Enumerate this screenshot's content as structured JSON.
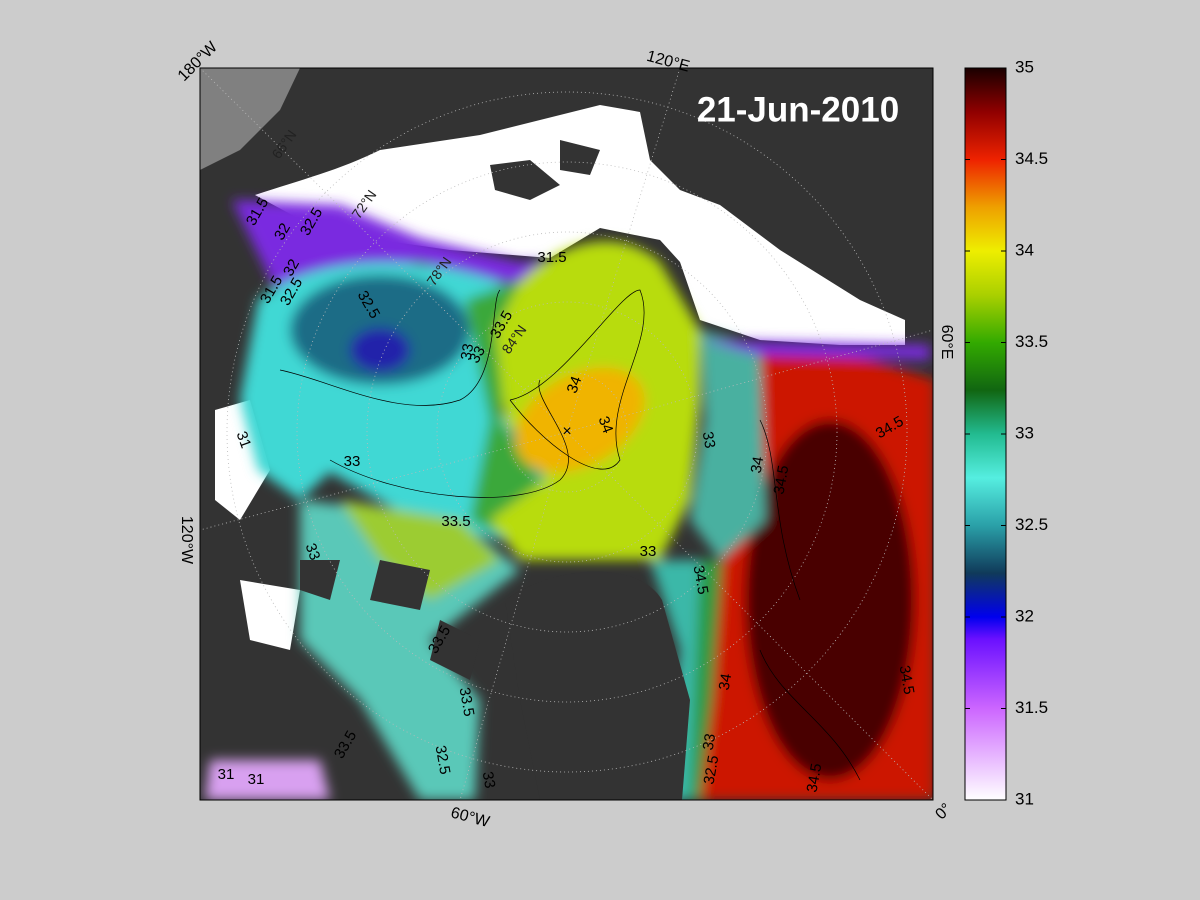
{
  "date_label": "21-Jun-2010",
  "longitude_labels": [
    "180°W",
    "120°E",
    "60°E",
    "0°",
    "60°W",
    "120°W"
  ],
  "latitude_labels": [
    "66°N",
    "72°N",
    "78°N",
    "84°N"
  ],
  "colorbar": {
    "range": [
      31,
      35
    ],
    "ticks": [
      31,
      31.5,
      32,
      32.5,
      33,
      33.5,
      34,
      34.5,
      35
    ]
  },
  "contour_labels": [
    "31.5",
    "32",
    "32.5",
    "32",
    "31.5",
    "32.5",
    "32.5",
    "33.5",
    "33",
    "34",
    "34",
    "33",
    "33",
    "31.5",
    "31",
    "33",
    "34",
    "34.5",
    "34.5",
    "33.5",
    "33",
    "33",
    "34.5",
    "33.5",
    "34",
    "33.5",
    "33",
    "32.5",
    "33",
    "31",
    "31",
    "33.5",
    "34.5",
    "34.5",
    "32.5"
  ]
}
